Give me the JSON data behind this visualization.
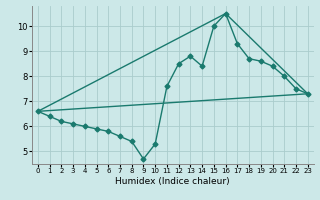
{
  "title": "",
  "xlabel": "Humidex (Indice chaleur)",
  "bg_color": "#cce8e8",
  "grid_color": "#aacccc",
  "line_color": "#1a7a6e",
  "marker": "D",
  "markersize": 2.5,
  "linewidth": 1.0,
  "xlim": [
    -0.5,
    23.5
  ],
  "ylim": [
    4.5,
    10.8
  ],
  "xticks": [
    0,
    1,
    2,
    3,
    4,
    5,
    6,
    7,
    8,
    9,
    10,
    11,
    12,
    13,
    14,
    15,
    16,
    17,
    18,
    19,
    20,
    21,
    22,
    23
  ],
  "yticks": [
    5,
    6,
    7,
    8,
    9,
    10
  ],
  "zigzag": {
    "x": [
      0,
      1,
      2,
      3,
      4,
      5,
      6,
      7,
      8,
      9,
      10,
      11,
      12,
      13,
      14,
      15,
      16,
      17,
      18,
      19,
      20,
      21,
      22,
      23
    ],
    "y": [
      6.6,
      6.4,
      6.2,
      6.1,
      6.0,
      5.9,
      5.8,
      5.6,
      5.4,
      4.7,
      5.3,
      7.6,
      8.5,
      8.8,
      8.4,
      10.0,
      10.5,
      9.3,
      8.7,
      8.6,
      8.4,
      8.0,
      7.5,
      7.3
    ]
  },
  "line1": {
    "x": [
      0,
      23
    ],
    "y": [
      6.6,
      7.3
    ]
  },
  "line2": {
    "x": [
      0,
      16,
      23
    ],
    "y": [
      6.6,
      10.5,
      7.3
    ]
  }
}
